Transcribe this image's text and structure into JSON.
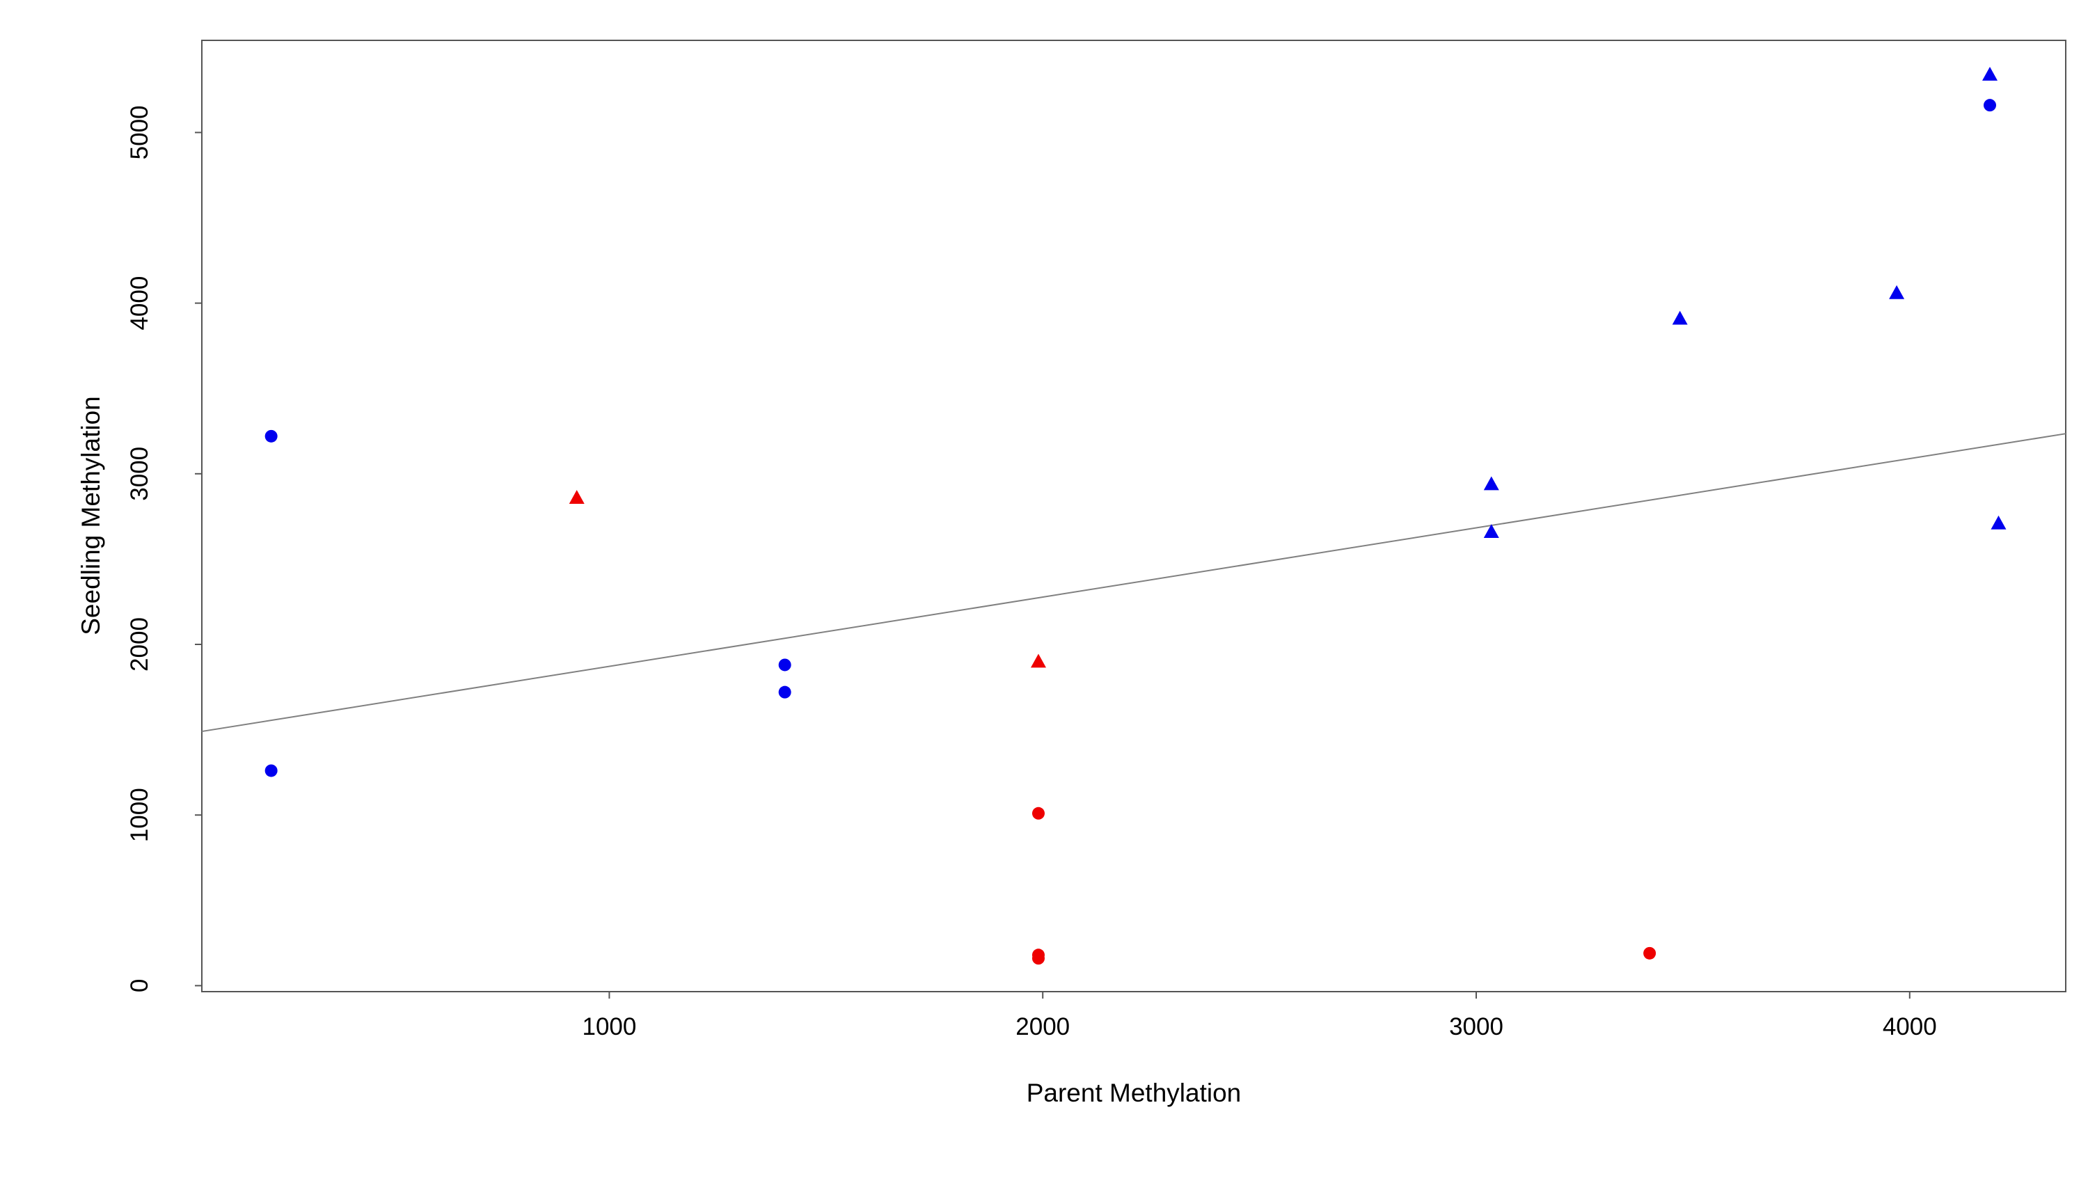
{
  "chart_data": {
    "type": "scatter",
    "title": "",
    "xlabel": "Parent Methylation",
    "ylabel": "Seedling Methylation",
    "xlim": [
      60,
      4360
    ],
    "ylim": [
      -35,
      5540
    ],
    "x_ticks": [
      1000,
      2000,
      3000,
      4000
    ],
    "y_ticks": [
      0,
      1000,
      2000,
      3000,
      4000,
      5000
    ],
    "grid": false,
    "legend": "none",
    "series": [
      {
        "marker": "circle",
        "color": "#0000ee",
        "points": [
          [
            220,
            3220
          ],
          [
            220,
            1260
          ],
          [
            1405,
            1880
          ],
          [
            1405,
            1720
          ],
          [
            4185,
            5160
          ]
        ]
      },
      {
        "marker": "triangle",
        "color": "#0000ee",
        "points": [
          [
            3035,
            2940
          ],
          [
            3035,
            2660
          ],
          [
            3470,
            3910
          ],
          [
            3970,
            4060
          ],
          [
            4185,
            5340
          ],
          [
            4205,
            2710
          ]
        ]
      },
      {
        "marker": "circle",
        "color": "#ee0000",
        "points": [
          [
            1990,
            1010
          ],
          [
            1990,
            180
          ],
          [
            1990,
            160
          ],
          [
            3400,
            190
          ]
        ]
      },
      {
        "marker": "triangle",
        "color": "#ee0000",
        "points": [
          [
            925,
            2860
          ],
          [
            1990,
            1900
          ]
        ]
      }
    ],
    "fit_line": {
      "color": "#808080",
      "x": [
        60,
        4360
      ],
      "y": [
        1490,
        3235
      ]
    }
  }
}
